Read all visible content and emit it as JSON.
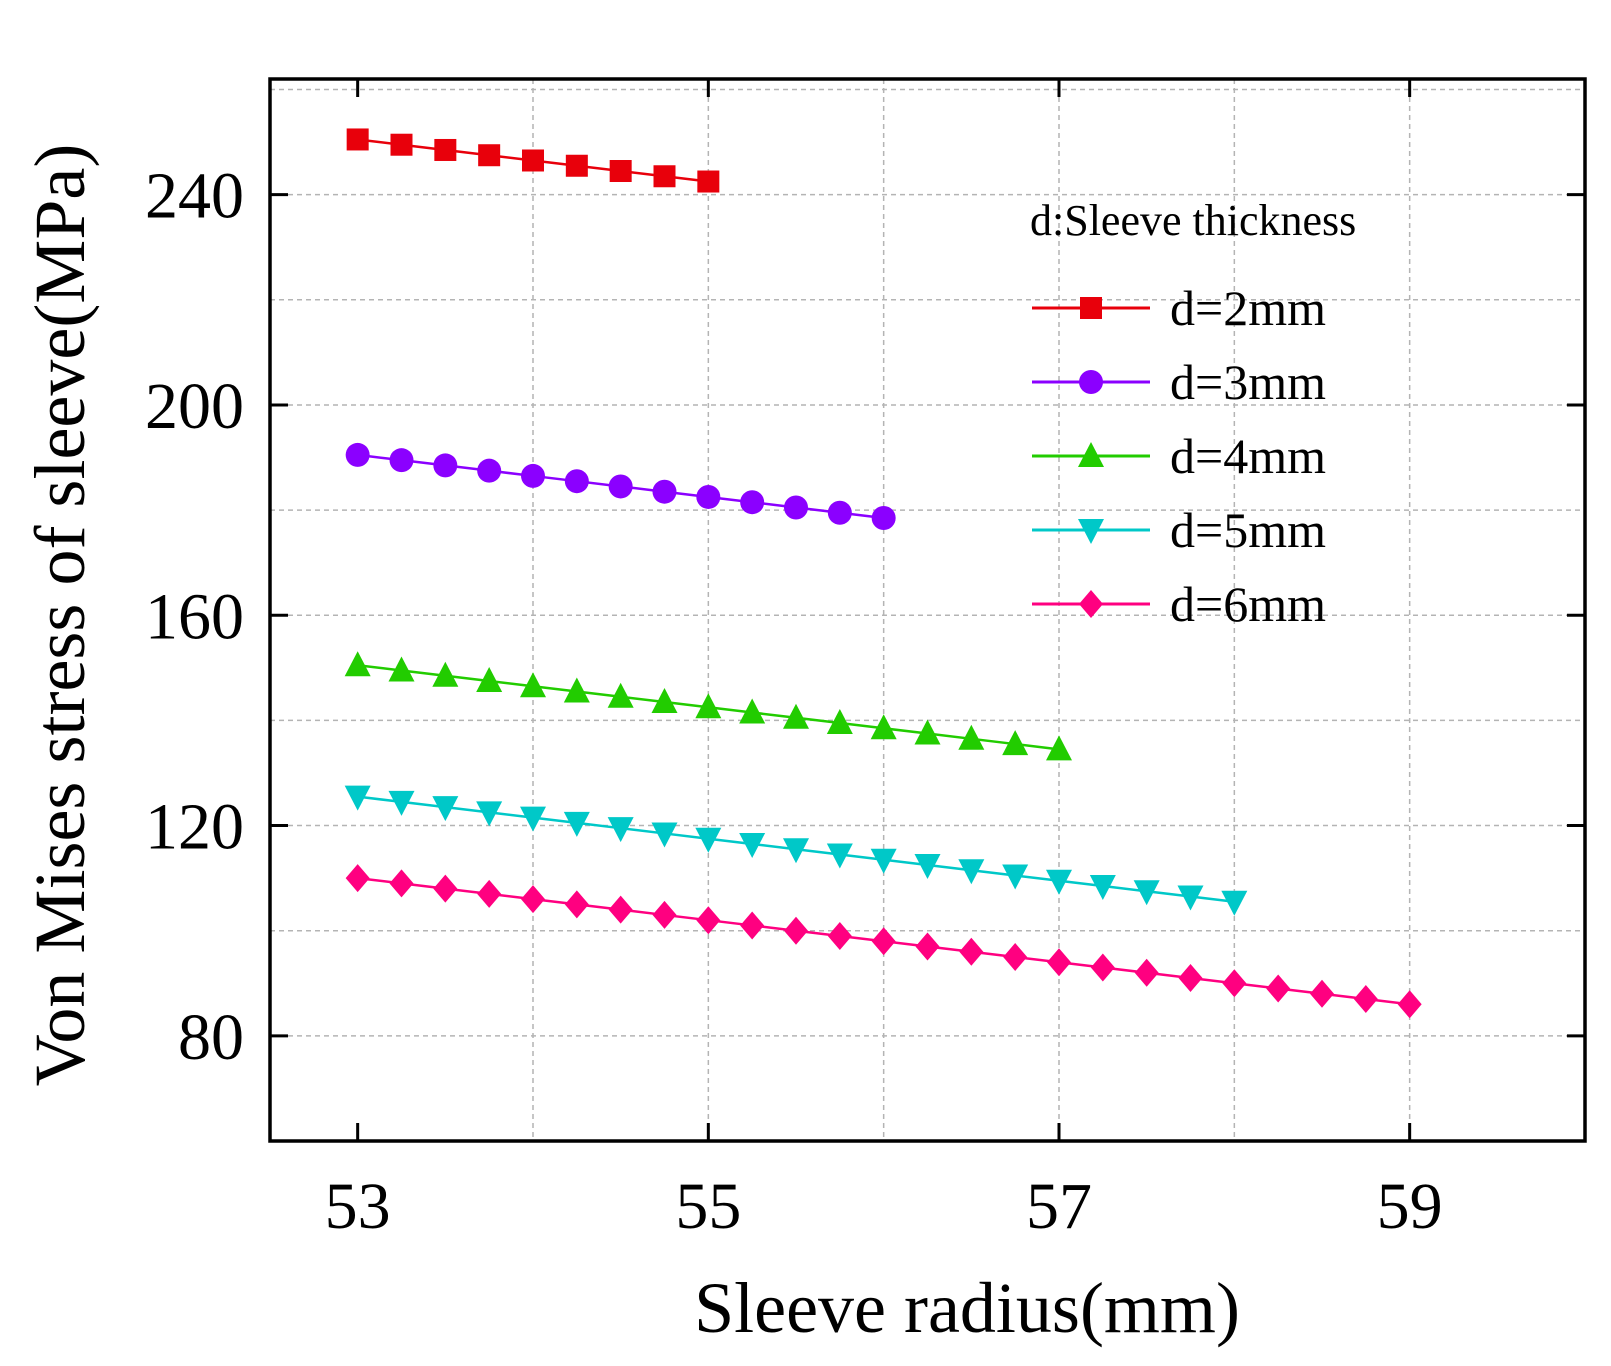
{
  "chart_data": {
    "type": "line",
    "xlabel": "Sleeve radius(mm)",
    "ylabel": "Von Mises stress of sleeve(MPa)",
    "xlim": [
      52.5,
      60.0
    ],
    "ylim": [
      60,
      262
    ],
    "xticks": [
      53,
      55,
      57,
      59
    ],
    "yticks": [
      80,
      120,
      160,
      200,
      240
    ],
    "grid": true,
    "legend": {
      "title": "d:Sleeve thickness",
      "position": "top-right"
    },
    "series": [
      {
        "name": "d=2mm",
        "color": "#e8000b",
        "marker": "square",
        "x": [
          53,
          53.25,
          53.5,
          53.75,
          54,
          54.25,
          54.5,
          54.75,
          55
        ],
        "values": [
          250.5,
          249.5,
          248.5,
          247.5,
          246.5,
          245.5,
          244.5,
          243.5,
          242.5
        ]
      },
      {
        "name": "d=3mm",
        "color": "#8b00ff",
        "marker": "circle",
        "x": [
          53,
          53.25,
          53.5,
          53.75,
          54,
          54.25,
          54.5,
          54.75,
          55,
          55.25,
          55.5,
          55.75,
          56
        ],
        "values": [
          190.5,
          189.5,
          188.5,
          187.5,
          186.5,
          185.5,
          184.5,
          183.5,
          182.5,
          181.5,
          180.5,
          179.5,
          178.5
        ]
      },
      {
        "name": "d=4mm",
        "color": "#22cc00",
        "marker": "triangle-up",
        "x": [
          53,
          53.25,
          53.5,
          53.75,
          54,
          54.25,
          54.5,
          54.75,
          55,
          55.25,
          55.5,
          55.75,
          56,
          56.25,
          56.5,
          56.75,
          57
        ],
        "values": [
          150.5,
          149.5,
          148.5,
          147.5,
          146.5,
          145.5,
          144.5,
          143.5,
          142.5,
          141.5,
          140.5,
          139.5,
          138.5,
          137.5,
          136.5,
          135.5,
          134.5
        ]
      },
      {
        "name": "d=5mm",
        "color": "#00c8c8",
        "marker": "triangle-down",
        "x": [
          53,
          53.25,
          53.5,
          53.75,
          54,
          54.25,
          54.5,
          54.75,
          55,
          55.25,
          55.5,
          55.75,
          56,
          56.25,
          56.5,
          56.75,
          57,
          57.25,
          57.5,
          57.75,
          58
        ],
        "values": [
          125.5,
          124.5,
          123.5,
          122.5,
          121.5,
          120.5,
          119.5,
          118.5,
          117.5,
          116.5,
          115.5,
          114.5,
          113.5,
          112.5,
          111.5,
          110.5,
          109.5,
          108.5,
          107.5,
          106.5,
          105.5
        ]
      },
      {
        "name": "d=6mm",
        "color": "#ff0080",
        "marker": "diamond",
        "x": [
          53,
          53.25,
          53.5,
          53.75,
          54,
          54.25,
          54.5,
          54.75,
          55,
          55.25,
          55.5,
          55.75,
          56,
          56.25,
          56.5,
          56.75,
          57,
          57.25,
          57.5,
          57.75,
          58,
          58.25,
          58.5,
          58.75,
          59
        ],
        "values": [
          110,
          109,
          108,
          107,
          106,
          105,
          104,
          103,
          102,
          101,
          100,
          99,
          98,
          97,
          96,
          95,
          94,
          93,
          92,
          91,
          90,
          89,
          88,
          87,
          86
        ]
      }
    ]
  }
}
